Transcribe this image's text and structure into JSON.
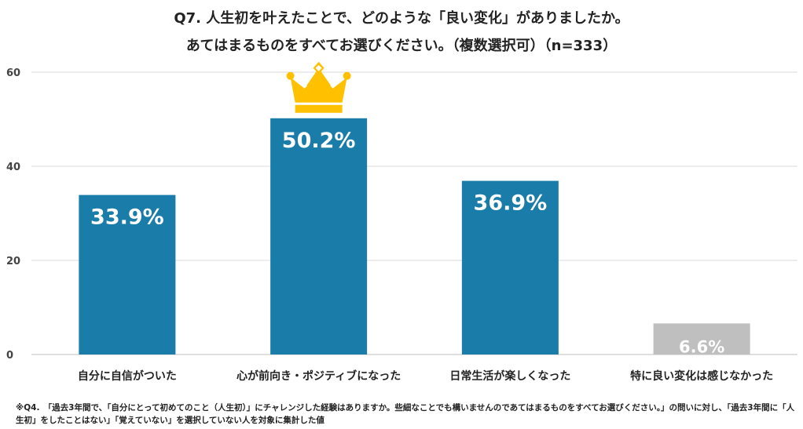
{
  "chart_data": {
    "type": "bar",
    "title": "Q7.  人生初を叶えたことで、どのような「良い変化」がありましたか。",
    "subtitle": "あてはまるものをすべてお選びください。（複数選択可）（n=333）",
    "categories": [
      "自分に自信がついた",
      "心が前向き・ポジティブになった",
      "日常生活が楽しくなった",
      "特に良い変化は感じなかった"
    ],
    "values": [
      33.9,
      50.2,
      36.9,
      6.6
    ],
    "value_labels": [
      "33.9%",
      "50.2%",
      "36.9%",
      "6.6%"
    ],
    "ylim": [
      0,
      60
    ],
    "yticks": [
      "0",
      "20",
      "40",
      "60"
    ],
    "grid": true,
    "bar_colors": [
      "#1a7ca8",
      "#1a7ca8",
      "#1a7ca8",
      "#bfbfbf"
    ],
    "highlight": "crown-icon"
  },
  "footnote": "※Q4.　「過去3年間で、「自分にとって初めてのこと（人生初）」にチャレンジした経験はありますか。些細なことでも構いませんのであてはまるものをすべてお選びください。」の問いに対し、「過去3年間に「人生初」をしたことはない」「覚えていない」を選択していない人を対象に集計した値"
}
